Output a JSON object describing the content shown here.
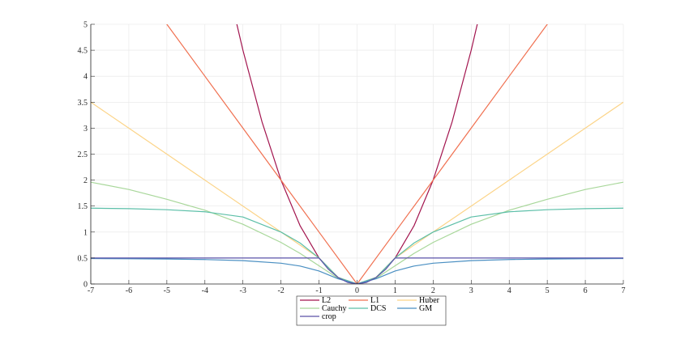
{
  "chart_data": {
    "type": "line",
    "title": "",
    "xlabel": "",
    "ylabel": "",
    "xlim": [
      -7,
      7
    ],
    "ylim": [
      0,
      5
    ],
    "x_ticks": [
      -7,
      -6,
      -5,
      -4,
      -3,
      -2,
      -1,
      0,
      1,
      2,
      3,
      4,
      5,
      6,
      7
    ],
    "y_ticks": [
      0,
      0.5,
      1,
      1.5,
      2,
      2.5,
      3,
      3.5,
      4,
      4.5,
      5
    ],
    "y_tick_labels": [
      "0",
      "0.5",
      "1",
      "1.5",
      "2",
      "2.5",
      "3",
      "3.5",
      "4",
      "4.5",
      "5"
    ],
    "grid": true,
    "legend_position": "bottom-center",
    "legend_columns": 3,
    "series": [
      {
        "name": "L2",
        "color": "#a2144e",
        "x": [
          -3.25,
          -3,
          -2.5,
          -2,
          -1.5,
          -1,
          -0.5,
          0,
          0.5,
          1,
          1.5,
          2,
          2.5,
          3,
          3.25
        ],
        "y": [
          5.28,
          4.5,
          3.125,
          2.0,
          1.125,
          0.5,
          0.125,
          0,
          0.125,
          0.5,
          1.125,
          2.0,
          3.125,
          4.5,
          5.28
        ]
      },
      {
        "name": "L1",
        "color": "#f07050",
        "x": [
          -5.2,
          -5,
          -4,
          -3,
          -2,
          -1,
          0,
          1,
          2,
          3,
          4,
          5,
          5.2
        ],
        "y": [
          5.2,
          5,
          4,
          3,
          2,
          1,
          0,
          1,
          2,
          3,
          4,
          5,
          5.2
        ]
      },
      {
        "name": "Huber",
        "color": "#fcd488",
        "x": [
          -7,
          -6,
          -5,
          -4,
          -3,
          -2,
          -1,
          -0.5,
          0,
          0.5,
          1,
          2,
          3,
          4,
          5,
          6,
          7
        ],
        "y": [
          3.5,
          3.0,
          2.5,
          2.0,
          1.5,
          1.0,
          0.5,
          0.125,
          0,
          0.125,
          0.5,
          1.0,
          1.5,
          2.0,
          2.5,
          3.0,
          3.5
        ]
      },
      {
        "name": "Cauchy",
        "color": "#a8d79a",
        "x": [
          -7,
          -6,
          -5,
          -4,
          -3,
          -2,
          -1.5,
          -1,
          -0.5,
          0,
          0.5,
          1,
          1.5,
          2,
          3,
          4,
          5,
          6,
          7
        ],
        "y": [
          1.96,
          1.82,
          1.63,
          1.42,
          1.15,
          0.8,
          0.59,
          0.35,
          0.11,
          0,
          0.11,
          0.35,
          0.59,
          0.8,
          1.15,
          1.42,
          1.63,
          1.82,
          1.96
        ]
      },
      {
        "name": "DCS",
        "color": "#5cbfa8",
        "x": [
          -7,
          -6,
          -5,
          -4,
          -3,
          -2,
          -1.5,
          -1,
          -0.5,
          0,
          0.5,
          1,
          1.5,
          2,
          3,
          4,
          5,
          6,
          7
        ],
        "y": [
          1.46,
          1.45,
          1.43,
          1.39,
          1.29,
          1.0,
          0.79,
          0.5,
          0.125,
          0,
          0.125,
          0.5,
          0.79,
          1.0,
          1.29,
          1.39,
          1.43,
          1.45,
          1.46
        ]
      },
      {
        "name": "GM",
        "color": "#4a8fc2",
        "x": [
          -7,
          -6,
          -5,
          -4,
          -3,
          -2,
          -1.5,
          -1,
          -0.5,
          0,
          0.5,
          1,
          1.5,
          2,
          3,
          4,
          5,
          6,
          7
        ],
        "y": [
          0.49,
          0.486,
          0.481,
          0.471,
          0.45,
          0.4,
          0.346,
          0.25,
          0.1,
          0,
          0.1,
          0.25,
          0.346,
          0.4,
          0.45,
          0.471,
          0.481,
          0.486,
          0.49
        ]
      },
      {
        "name": "crop",
        "color": "#5a52a8",
        "x": [
          -7,
          -1,
          -0.75,
          -0.5,
          -0.25,
          0,
          0.25,
          0.5,
          0.75,
          1,
          7
        ],
        "y": [
          0.5,
          0.5,
          0.281,
          0.125,
          0.031,
          0,
          0.031,
          0.125,
          0.281,
          0.5,
          0.5
        ]
      }
    ]
  }
}
